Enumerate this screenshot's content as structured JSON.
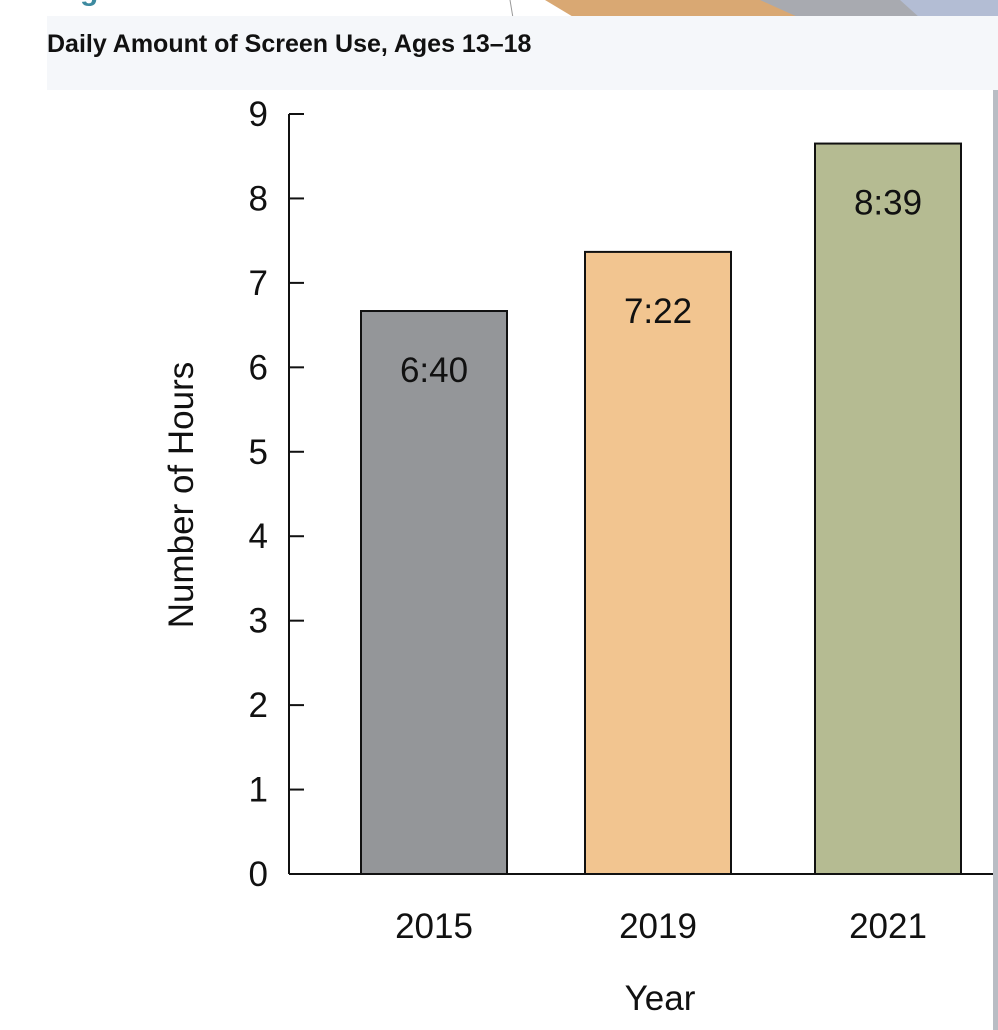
{
  "chart_data": {
    "type": "bar",
    "title": "Daily Amount of Screen Use, Ages 13–18",
    "xlabel": "Year",
    "ylabel": "Number of Hours",
    "categories": [
      "2015",
      "2019",
      "2021"
    ],
    "values": [
      6.667,
      7.367,
      8.65
    ],
    "data_labels": [
      "6:40",
      "7:22",
      "8:39"
    ],
    "bar_colors": [
      "#949699",
      "#f2c590",
      "#b5bb92"
    ],
    "ylim": [
      0,
      9
    ],
    "yticks": [
      0,
      1,
      2,
      3,
      4,
      5,
      6,
      7,
      8,
      9
    ],
    "grid": false,
    "legend": "none"
  },
  "header": {
    "cutoff_heading": "g"
  },
  "colors": {
    "slide_accent": "#d9a873",
    "slide_gray": "#a8aab0",
    "slide_blue": "#b3bdd4",
    "cutoff_heading": "#3d8aa0"
  }
}
